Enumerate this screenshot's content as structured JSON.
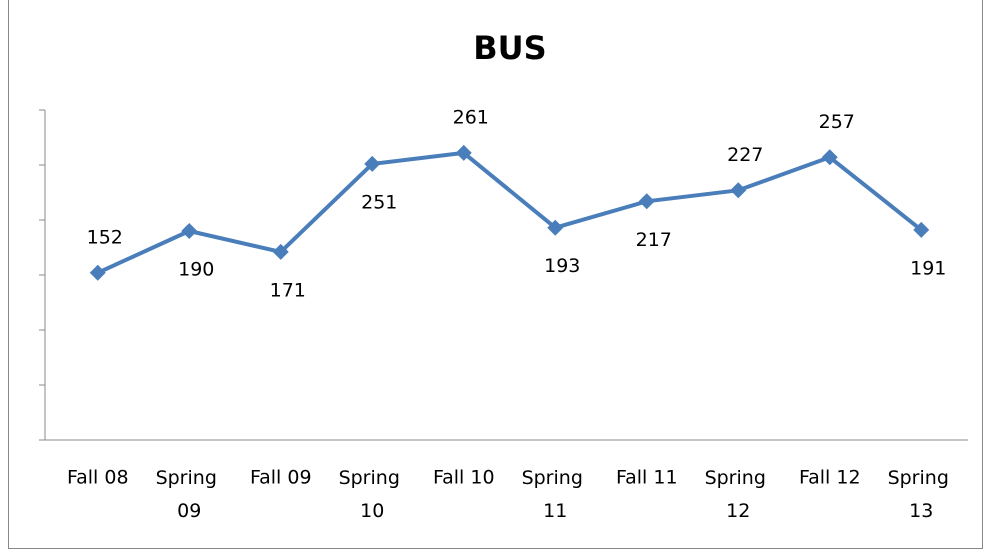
{
  "chart_data": {
    "type": "line",
    "title": "BUS",
    "categories": [
      "Fall 08",
      "Spring 09",
      "Fall 09",
      "Spring 10",
      "Fall 10",
      "Spring 11",
      "Fall 11",
      "Spring 12",
      "Fall 12",
      "Spring 13"
    ],
    "values": [
      152,
      190,
      171,
      251,
      261,
      193,
      217,
      227,
      257,
      191
    ],
    "color": "#4a7ebb",
    "ylim": [
      0,
      300
    ],
    "yticks": [
      0,
      50,
      100,
      150,
      200,
      250,
      300
    ],
    "grid": false
  }
}
